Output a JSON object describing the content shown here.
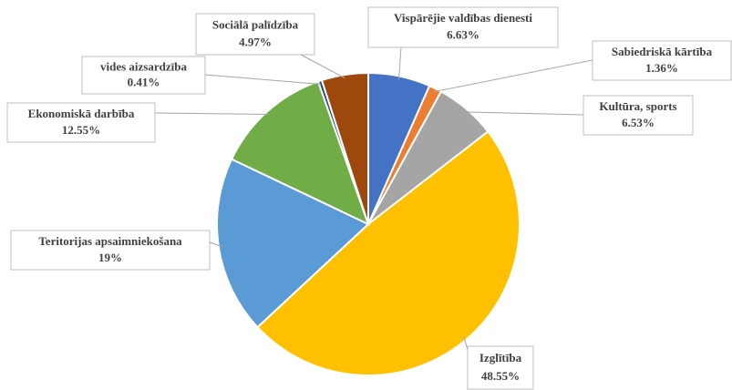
{
  "chart_data": {
    "type": "pie",
    "categories": [
      "Vispārējie valdības dienesti",
      "Sabiedriskā kārtība",
      "Kultūra, sports",
      "Izglītība",
      "Teritorijas apsaimniekošana",
      "Ekonomiskā darbība",
      "vides aizsardzība",
      "Sociālā palīdzība"
    ],
    "values": [
      6.63,
      1.36,
      6.53,
      48.55,
      19,
      12.55,
      0.41,
      4.97
    ],
    "value_labels": [
      "6.63%",
      "1.36%",
      "6.53%",
      "48.55%",
      "19%",
      "12.55%",
      "0.41%",
      "4.97%"
    ],
    "colors": [
      "#4472c4",
      "#ed7d31",
      "#a5a5a5",
      "#ffc000",
      "#5b9bd5",
      "#70ad47",
      "#264478",
      "#9e480e"
    ]
  }
}
